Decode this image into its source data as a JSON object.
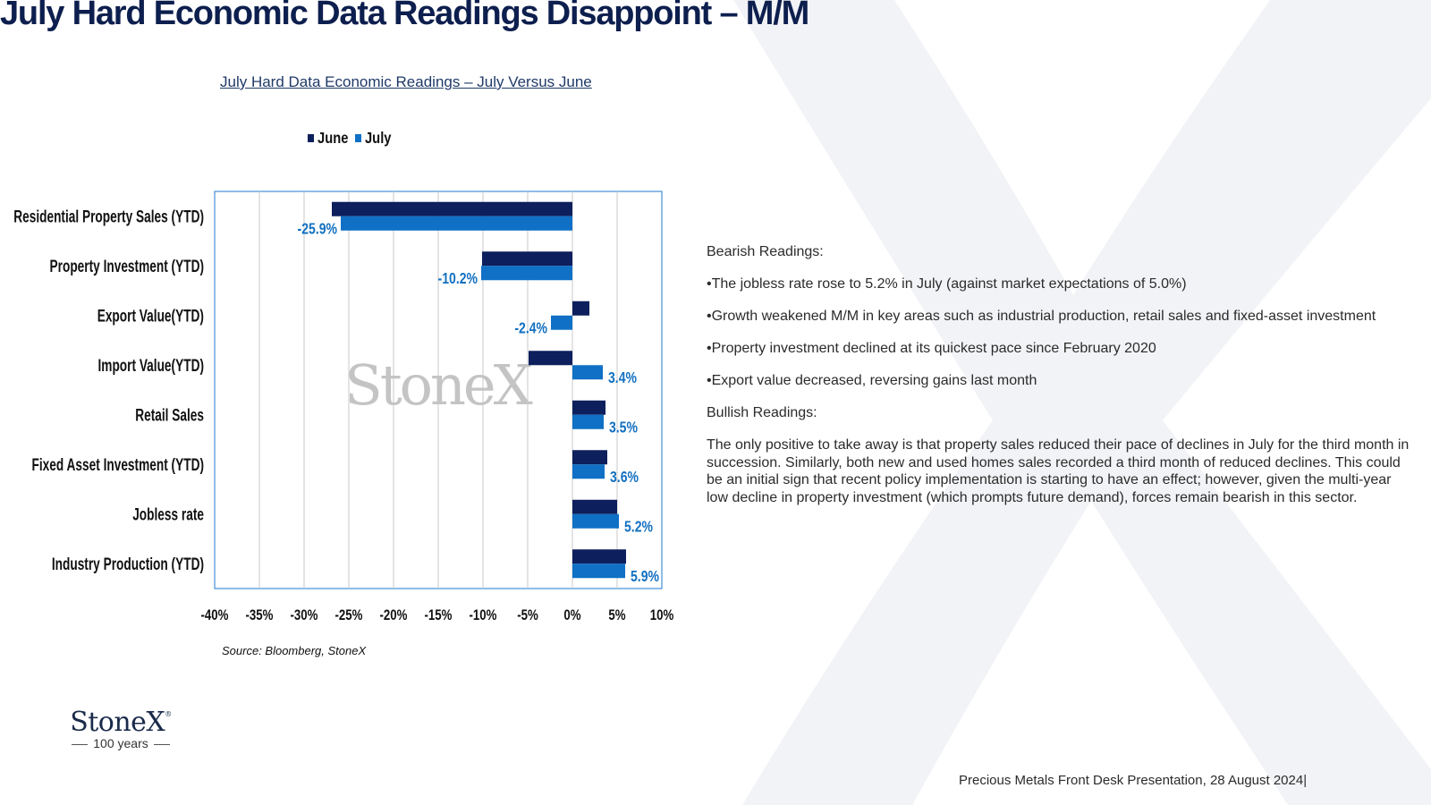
{
  "title": "July Hard Economic Data Readings Disappoint – M/M",
  "chart_title": "July Hard Data Economic Readings – July Versus June",
  "watermark": "StoneX",
  "source": "Source: Bloomberg, StoneX",
  "bearish_heading": "Bearish Readings:",
  "bearish_points": [
    "•The jobless rate rose to 5.2% in July (against market expectations of 5.0%)",
    "•Growth weakened M/M in key areas such as industrial production, retail sales and fixed-asset investment",
    "•Property investment declined at its quickest pace since February 2020",
    "•Export value decreased, reversing gains last month"
  ],
  "bullish_heading": "Bullish Readings:",
  "bullish_text": "The only positive to take away is that property sales reduced their pace of declines in July for the third month in succession. Similarly, both new and used homes sales recorded a third month of reduced declines. This could be an initial sign that recent policy implementation is starting to have an effect; however, given the multi-year low decline in property investment (which prompts future demand), forces remain bearish in this sector.",
  "logo": {
    "word": "StoneX",
    "mark": "®",
    "tagline": "100 years"
  },
  "footer": "Precious Metals Front Desk Presentation,  28 August 2024|",
  "colors": {
    "june": "#0d1f5c",
    "july": "#0f70c6",
    "title": "#0d1f4e",
    "label_july": "#1370c0",
    "border": "#1f7ad0",
    "grid": "#c8c8c8"
  },
  "chart_data": {
    "type": "bar",
    "orientation": "horizontal",
    "categories": [
      "Residential Property Sales (YTD)",
      "Property Investment (YTD)",
      "Export Value(YTD)",
      "Import Value(YTD)",
      "Retail Sales",
      "Fixed Asset Investment (YTD)",
      "Jobless rate",
      "Industry Production (YTD)"
    ],
    "series": [
      {
        "name": "June",
        "values": [
          -26.9,
          -10.1,
          1.9,
          -4.9,
          3.7,
          3.9,
          5.0,
          6.0
        ]
      },
      {
        "name": "July",
        "values": [
          -25.9,
          -10.2,
          -2.4,
          3.4,
          3.5,
          3.6,
          5.2,
          5.9
        ]
      }
    ],
    "data_labels": [
      "-25.9%",
      "-10.2%",
      "-2.4%",
      "3.4%",
      "3.5%",
      "3.6%",
      "5.2%",
      "5.9%"
    ],
    "xlim": [
      -40,
      10
    ],
    "xticks": [
      -40,
      -35,
      -30,
      -25,
      -20,
      -15,
      -10,
      -5,
      0,
      5,
      10
    ],
    "xtick_labels": [
      "-40%",
      "-35%",
      "-30%",
      "-25%",
      "-20%",
      "-15%",
      "-10%",
      "-5%",
      "0%",
      "5%",
      "10%"
    ],
    "xlabel": "",
    "ylabel": "",
    "grid": true,
    "legend_position": "top"
  }
}
